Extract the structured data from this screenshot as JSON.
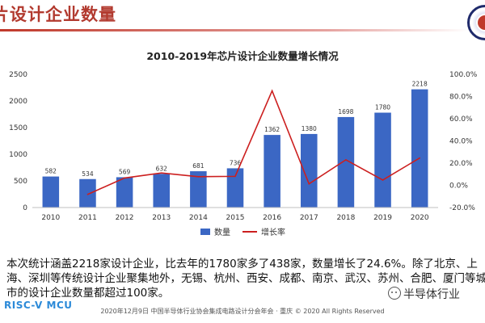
{
  "slide": {
    "title": "片设计企业数量",
    "summary": "本次统计涵盖2218家设计企业，比去年的1780家多了438家，数量增长了24.6%。除了北京、上海、深圳等传统设计企业聚集地外，无锡、杭州、西安、成都、南京、武汉、苏州、合肥、厦门等城市的设计企业数量都超过100家。",
    "footer": "2020年12月9日  中国半导体行业协会集成电路设计分会年会 · 重庆 © 2020 All Rights Reserved",
    "brand_left": "RISC-V MCU",
    "brand_right": "半导体行业",
    "emblem_icon": "association-emblem-icon"
  },
  "chart_data": {
    "type": "bar+line",
    "title": "2010-2019年芯片设计企业数量增长情况",
    "categories": [
      "2010",
      "2011",
      "2012",
      "2013",
      "2014",
      "2015",
      "2016",
      "2017",
      "2018",
      "2019",
      "2020"
    ],
    "series": [
      {
        "name": "数量",
        "type": "bar",
        "axis": "left",
        "color": "#3b67c4",
        "values": [
          582,
          534,
          569,
          632,
          681,
          736,
          1362,
          1380,
          1698,
          1780,
          2218
        ],
        "labels": [
          "582",
          "534",
          "569",
          "632",
          "681",
          "736",
          "1362",
          "1380",
          "1698",
          "1780",
          "2218"
        ]
      },
      {
        "name": "增长率",
        "type": "line",
        "axis": "right",
        "color": "#cc1f1f",
        "values": [
          null,
          -8.2,
          6.6,
          11.1,
          7.8,
          8.1,
          85.1,
          1.3,
          23.0,
          4.8,
          24.6
        ]
      }
    ],
    "y_left": {
      "min": 0,
      "max": 2500,
      "ticks": [
        "0",
        "500",
        "1000",
        "1500",
        "2000",
        "2500"
      ]
    },
    "y_right": {
      "min": -20,
      "max": 100,
      "ticks": [
        "-20.0%",
        "0.0%",
        "20.0%",
        "40.0%",
        "60.0%",
        "80.0%",
        "100.0%"
      ]
    },
    "legend": [
      "数量",
      "增长率"
    ],
    "legend_position": "bottom",
    "grid": false
  }
}
